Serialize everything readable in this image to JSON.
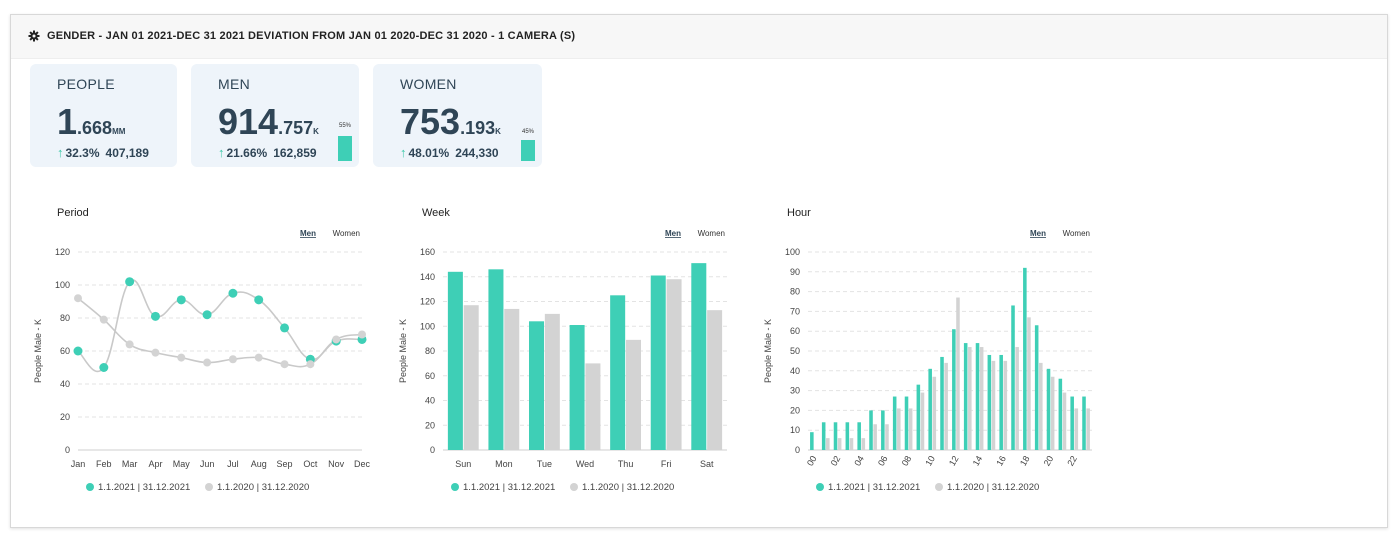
{
  "header": {
    "title": "GENDER - JAN 01 2021-DEC 31 2021 DEVIATION FROM JAN 01 2020-DEC 31 2020 - 1 CAMERA (S)",
    "icon": "gear-icon"
  },
  "colors": {
    "current": "#3ecfb6",
    "previous": "#d3d3d3",
    "kpi_bg": "#eef4fa"
  },
  "kpis": [
    {
      "title": "PEOPLE",
      "value_main": "1",
      "value_dec": ".668",
      "unit": "MM",
      "delta_pct": "32.3%",
      "delta_abs": "407,189",
      "share": null
    },
    {
      "title": "MEN",
      "value_main": "914",
      "value_dec": ".757",
      "unit": "K",
      "delta_pct": "21.66%",
      "delta_abs": "162,859",
      "share": 0.55,
      "share_label": "55%"
    },
    {
      "title": "WOMEN",
      "value_main": "753",
      "value_dec": ".193",
      "unit": "K",
      "delta_pct": "48.01%",
      "delta_abs": "244,330",
      "share": 0.45,
      "share_label": "45%"
    }
  ],
  "chart_data": [
    {
      "type": "line",
      "title": "Period",
      "ylabel": "People Male - K",
      "xlabel": "",
      "toggle": {
        "selected": "Men",
        "other": "Women"
      },
      "categories": [
        "Jan",
        "Feb",
        "Mar",
        "Apr",
        "May",
        "Jun",
        "Jul",
        "Aug",
        "Sep",
        "Oct",
        "Nov",
        "Dec"
      ],
      "ylim": [
        0,
        120
      ],
      "yticks": [
        0,
        20,
        40,
        60,
        80,
        100,
        120
      ],
      "series": [
        {
          "name": "1.1.2021 | 31.12.2021",
          "values": [
            60,
            50,
            102,
            81,
            91,
            82,
            95,
            91,
            74,
            55,
            66,
            67
          ]
        },
        {
          "name": "1.1.2020 | 31.12.2020",
          "values": [
            92,
            79,
            64,
            59,
            56,
            53,
            55,
            56,
            52,
            52,
            67,
            70
          ]
        }
      ]
    },
    {
      "type": "bar",
      "title": "Week",
      "ylabel": "People Male - K",
      "xlabel": "",
      "toggle": {
        "selected": "Men",
        "other": "Women"
      },
      "categories": [
        "Sun",
        "Mon",
        "Tue",
        "Wed",
        "Thu",
        "Fri",
        "Sat"
      ],
      "ylim": [
        0,
        160
      ],
      "yticks": [
        0,
        20,
        40,
        60,
        80,
        100,
        120,
        140,
        160
      ],
      "series": [
        {
          "name": "1.1.2021 | 31.12.2021",
          "values": [
            144,
            146,
            104,
            101,
            125,
            141,
            151
          ]
        },
        {
          "name": "1.1.2020 | 31.12.2020",
          "values": [
            117,
            114,
            110,
            70,
            89,
            138,
            113
          ]
        }
      ]
    },
    {
      "type": "bar",
      "title": "Hour",
      "ylabel": "People Male - K",
      "xlabel": "",
      "toggle": {
        "selected": "Men",
        "other": "Women"
      },
      "categories": [
        "00",
        "01",
        "02",
        "03",
        "04",
        "05",
        "06",
        "07",
        "08",
        "09",
        "10",
        "11",
        "12",
        "13",
        "14",
        "15",
        "16",
        "17",
        "18",
        "19",
        "20",
        "21",
        "22",
        "23"
      ],
      "tick_labels": [
        "00",
        "02",
        "04",
        "06",
        "08",
        "10",
        "12",
        "14",
        "16",
        "18",
        "20",
        "22"
      ],
      "ylim": [
        0,
        100
      ],
      "yticks": [
        0,
        10,
        20,
        30,
        40,
        50,
        60,
        70,
        80,
        90,
        100
      ],
      "series": [
        {
          "name": "1.1.2021 | 31.12.2021",
          "values": [
            9,
            14,
            14,
            14,
            14,
            20,
            20,
            27,
            27,
            33,
            41,
            47,
            61,
            54,
            54,
            48,
            48,
            73,
            92,
            63,
            41,
            36,
            27,
            27
          ]
        },
        {
          "name": "1.1.2020 | 31.12.2020",
          "values": [
            0,
            6,
            6,
            6,
            6,
            13,
            13,
            21,
            21,
            29,
            37,
            44,
            77,
            52,
            52,
            45,
            45,
            52,
            67,
            44,
            37,
            29,
            21,
            21
          ]
        }
      ]
    }
  ]
}
